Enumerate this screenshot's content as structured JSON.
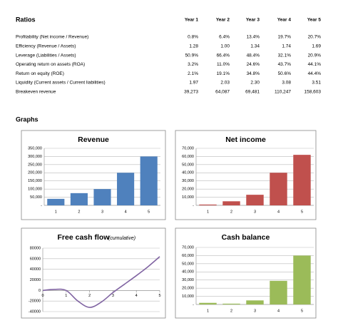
{
  "ratios": {
    "title": "Ratios",
    "columns": [
      "Year 1",
      "Year 2",
      "Year 3",
      "Year 4",
      "Year 5"
    ],
    "rows": [
      {
        "label": "Profitability (Net income / Revenue)",
        "values": [
          "0.8%",
          "6.4%",
          "13.4%",
          "19.7%",
          "20.7%"
        ]
      },
      {
        "label": "Efficiency (Revenue  / Assets)",
        "values": [
          "1.28",
          "1.00",
          "1.34",
          "1.74",
          "1.69"
        ]
      },
      {
        "label": "Leverage (Liabilities / Assets)",
        "values": [
          "50.9%",
          "66.4%",
          "48.4%",
          "32.1%",
          "20.9%"
        ]
      },
      {
        "label": "Operating return on assets (ROA)",
        "values": [
          "3.2%",
          "11.0%",
          "24.6%",
          "43.7%",
          "44.1%"
        ]
      },
      {
        "label": "Return on equity (ROE)",
        "values": [
          "2.1%",
          "19.1%",
          "34.8%",
          "50.6%",
          "44.4%"
        ]
      },
      {
        "label": "Liquidity (Current assets / Current liabilities)",
        "values": [
          "1.97",
          "2.03",
          "2.30",
          "3.08",
          "3.51"
        ]
      },
      {
        "label": "Breakeven revenue",
        "values": [
          "39,273",
          "64,087",
          "69,481",
          "110,247",
          "158,603"
        ]
      }
    ]
  },
  "graphs_title": "Graphs",
  "chart_data": [
    {
      "type": "bar",
      "title": "Revenue",
      "categories": [
        "1",
        "2",
        "3",
        "4",
        "5"
      ],
      "values": [
        40000,
        75000,
        100000,
        200000,
        300000
      ],
      "color": "#4f81bd",
      "grid": true,
      "ylim": [
        0,
        350000
      ],
      "yticks": [
        {
          "value": 0,
          "label": "-"
        },
        {
          "value": 50000,
          "label": "50,000"
        },
        {
          "value": 100000,
          "label": "100,000"
        },
        {
          "value": 150000,
          "label": "150,000"
        },
        {
          "value": 200000,
          "label": "200,000"
        },
        {
          "value": 250000,
          "label": "250,000"
        },
        {
          "value": 300000,
          "label": "300,000"
        },
        {
          "value": 350000,
          "label": "350,000"
        }
      ]
    },
    {
      "type": "bar",
      "title": "Net income",
      "categories": [
        "1",
        "2",
        "3",
        "4",
        "5"
      ],
      "values": [
        1000,
        5000,
        13000,
        40000,
        62000
      ],
      "color": "#c0504d",
      "grid": true,
      "ylim": [
        0,
        70000
      ],
      "yticks": [
        {
          "value": 0,
          "label": "-"
        },
        {
          "value": 10000,
          "label": "10,000"
        },
        {
          "value": 20000,
          "label": "20,000"
        },
        {
          "value": 30000,
          "label": "30,000"
        },
        {
          "value": 40000,
          "label": "40,000"
        },
        {
          "value": 50000,
          "label": "50,000"
        },
        {
          "value": 60000,
          "label": "60,000"
        },
        {
          "value": 70000,
          "label": "70,000"
        }
      ]
    },
    {
      "type": "line",
      "title": "Free cash flow",
      "subtitle": "(cumulative)",
      "x": [
        0,
        0.5,
        1,
        1.5,
        2,
        2.5,
        3,
        3.5,
        4,
        4.5,
        5
      ],
      "values": [
        0,
        2000,
        0,
        -20000,
        -32000,
        -22000,
        -4000,
        12000,
        28000,
        45000,
        64000
      ],
      "color": "#8064a2",
      "grid": true,
      "xlim": [
        0,
        5
      ],
      "xticks": [
        0,
        1,
        2,
        3,
        4,
        5
      ],
      "ylim": [
        -40000,
        80000
      ],
      "yticks": [
        -40000,
        -20000,
        0,
        20000,
        40000,
        60000,
        80000
      ]
    },
    {
      "type": "bar",
      "title": "Cash balance",
      "categories": [
        "1",
        "2",
        "3",
        "4",
        "5"
      ],
      "values": [
        2000,
        1000,
        5000,
        29000,
        60000
      ],
      "color": "#9bbb59",
      "grid": true,
      "ylim": [
        0,
        70000
      ],
      "yticks": [
        {
          "value": 0,
          "label": "-"
        },
        {
          "value": 10000,
          "label": "10,000"
        },
        {
          "value": 20000,
          "label": "20,000"
        },
        {
          "value": 30000,
          "label": "30,000"
        },
        {
          "value": 40000,
          "label": "40,000"
        },
        {
          "value": 50000,
          "label": "50,000"
        },
        {
          "value": 60000,
          "label": "60,000"
        },
        {
          "value": 70000,
          "label": "70,000"
        }
      ]
    }
  ]
}
